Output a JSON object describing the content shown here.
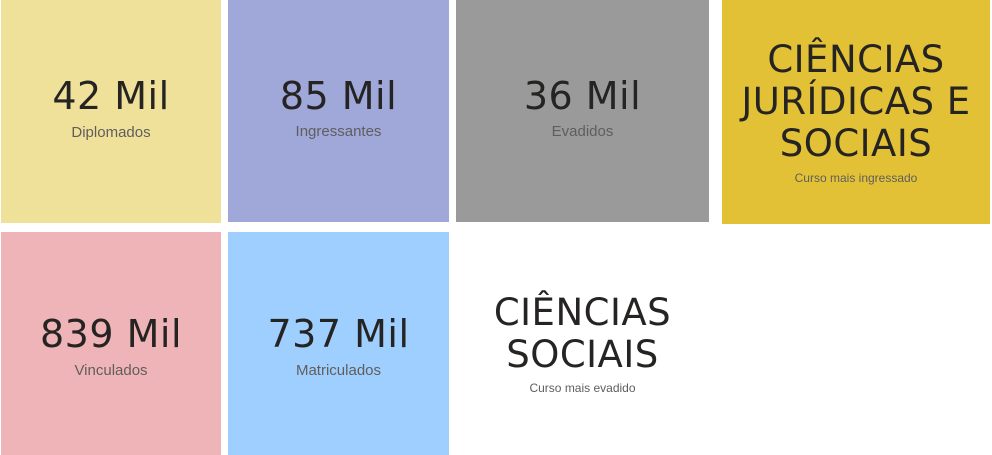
{
  "cards": {
    "diplomados": {
      "value": "42 Mil",
      "label": "Diplomados",
      "bg": "#EFE09A"
    },
    "ingressantes": {
      "value": "85 Mil",
      "label": "Ingressantes",
      "bg": "#A0A7D9"
    },
    "evadidos": {
      "value": "36 Mil",
      "label": "Evadidos",
      "bg": "#9A9A9A"
    },
    "vinculados": {
      "value": "839 Mil",
      "label": "Vinculados",
      "bg": "#EFB4B8"
    },
    "matriculados": {
      "value": "737 Mil",
      "label": "Matriculados",
      "bg": "#9FCFFF"
    }
  },
  "course_ingressado": {
    "lines": [
      "CIÊNCIAS",
      "JURÍDICAS E",
      "SOCIAIS"
    ],
    "label": "Curso mais ingressado",
    "bg": "#E2C136"
  },
  "course_evadido": {
    "lines": [
      "CIÊNCIAS",
      "SOCIAIS"
    ],
    "label": "Curso mais evadido",
    "bg": "#FFFFFF"
  }
}
